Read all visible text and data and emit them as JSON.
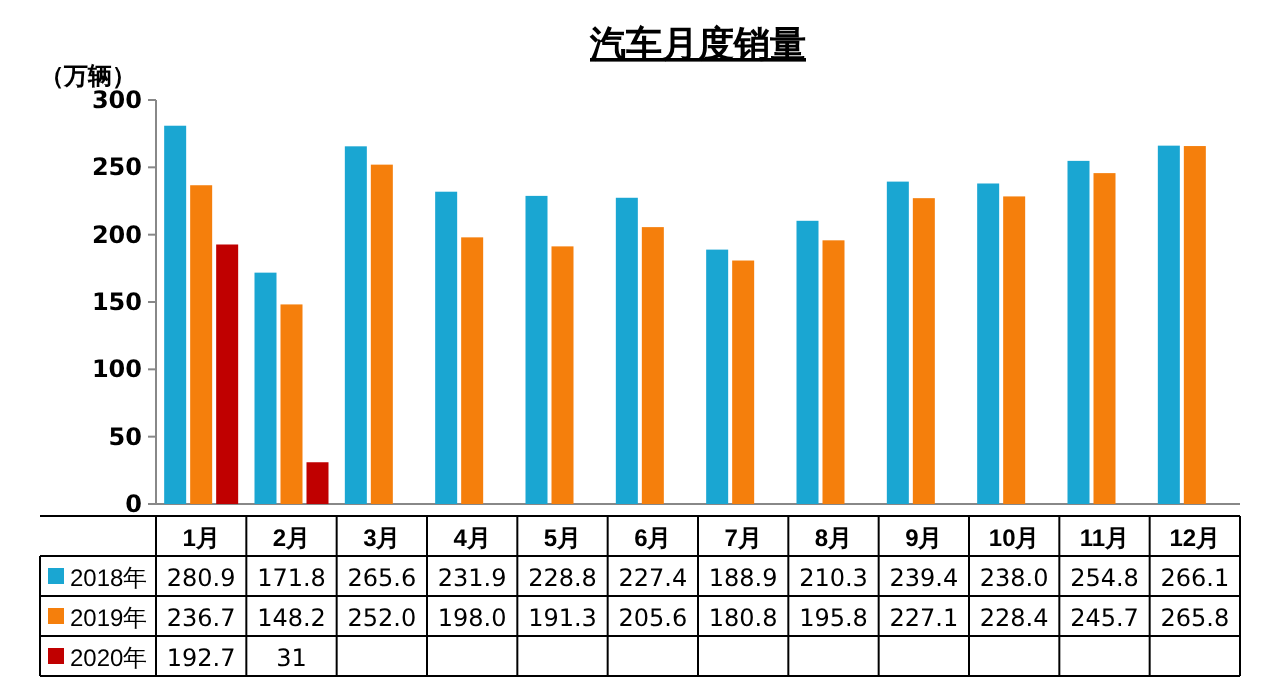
{
  "chart_data": {
    "type": "bar",
    "title": "汽车月度销量",
    "ylabel": "（万辆）",
    "categories": [
      "1月",
      "2月",
      "3月",
      "4月",
      "5月",
      "6月",
      "7月",
      "8月",
      "9月",
      "10月",
      "11月",
      "12月"
    ],
    "series": [
      {
        "name": "2018年",
        "color": "#1aa6d2",
        "values": [
          280.9,
          171.8,
          265.6,
          231.9,
          228.8,
          227.4,
          188.9,
          210.3,
          239.4,
          238.0,
          254.8,
          266.1
        ],
        "value_labels": [
          "280.9",
          "171.8",
          "265.6",
          "231.9",
          "228.8",
          "227.4",
          "188.9",
          "210.3",
          "239.4",
          "238.0",
          "254.8",
          "266.1"
        ]
      },
      {
        "name": "2019年",
        "color": "#f57f0c",
        "values": [
          236.7,
          148.2,
          252.0,
          198.0,
          191.3,
          205.6,
          180.8,
          195.8,
          227.1,
          228.4,
          245.7,
          265.8
        ],
        "value_labels": [
          "236.7",
          "148.2",
          "252.0",
          "198.0",
          "191.3",
          "205.6",
          "180.8",
          "195.8",
          "227.1",
          "228.4",
          "245.7",
          "265.8"
        ]
      },
      {
        "name": "2020年",
        "color": "#c00000",
        "values": [
          192.7,
          31,
          null,
          null,
          null,
          null,
          null,
          null,
          null,
          null,
          null,
          null
        ]
      }
    ],
    "ylim": [
      0,
      300
    ],
    "yticks": [
      0,
      50,
      100,
      150,
      200,
      250,
      300
    ],
    "data_labels": true,
    "legend": "bottom"
  }
}
